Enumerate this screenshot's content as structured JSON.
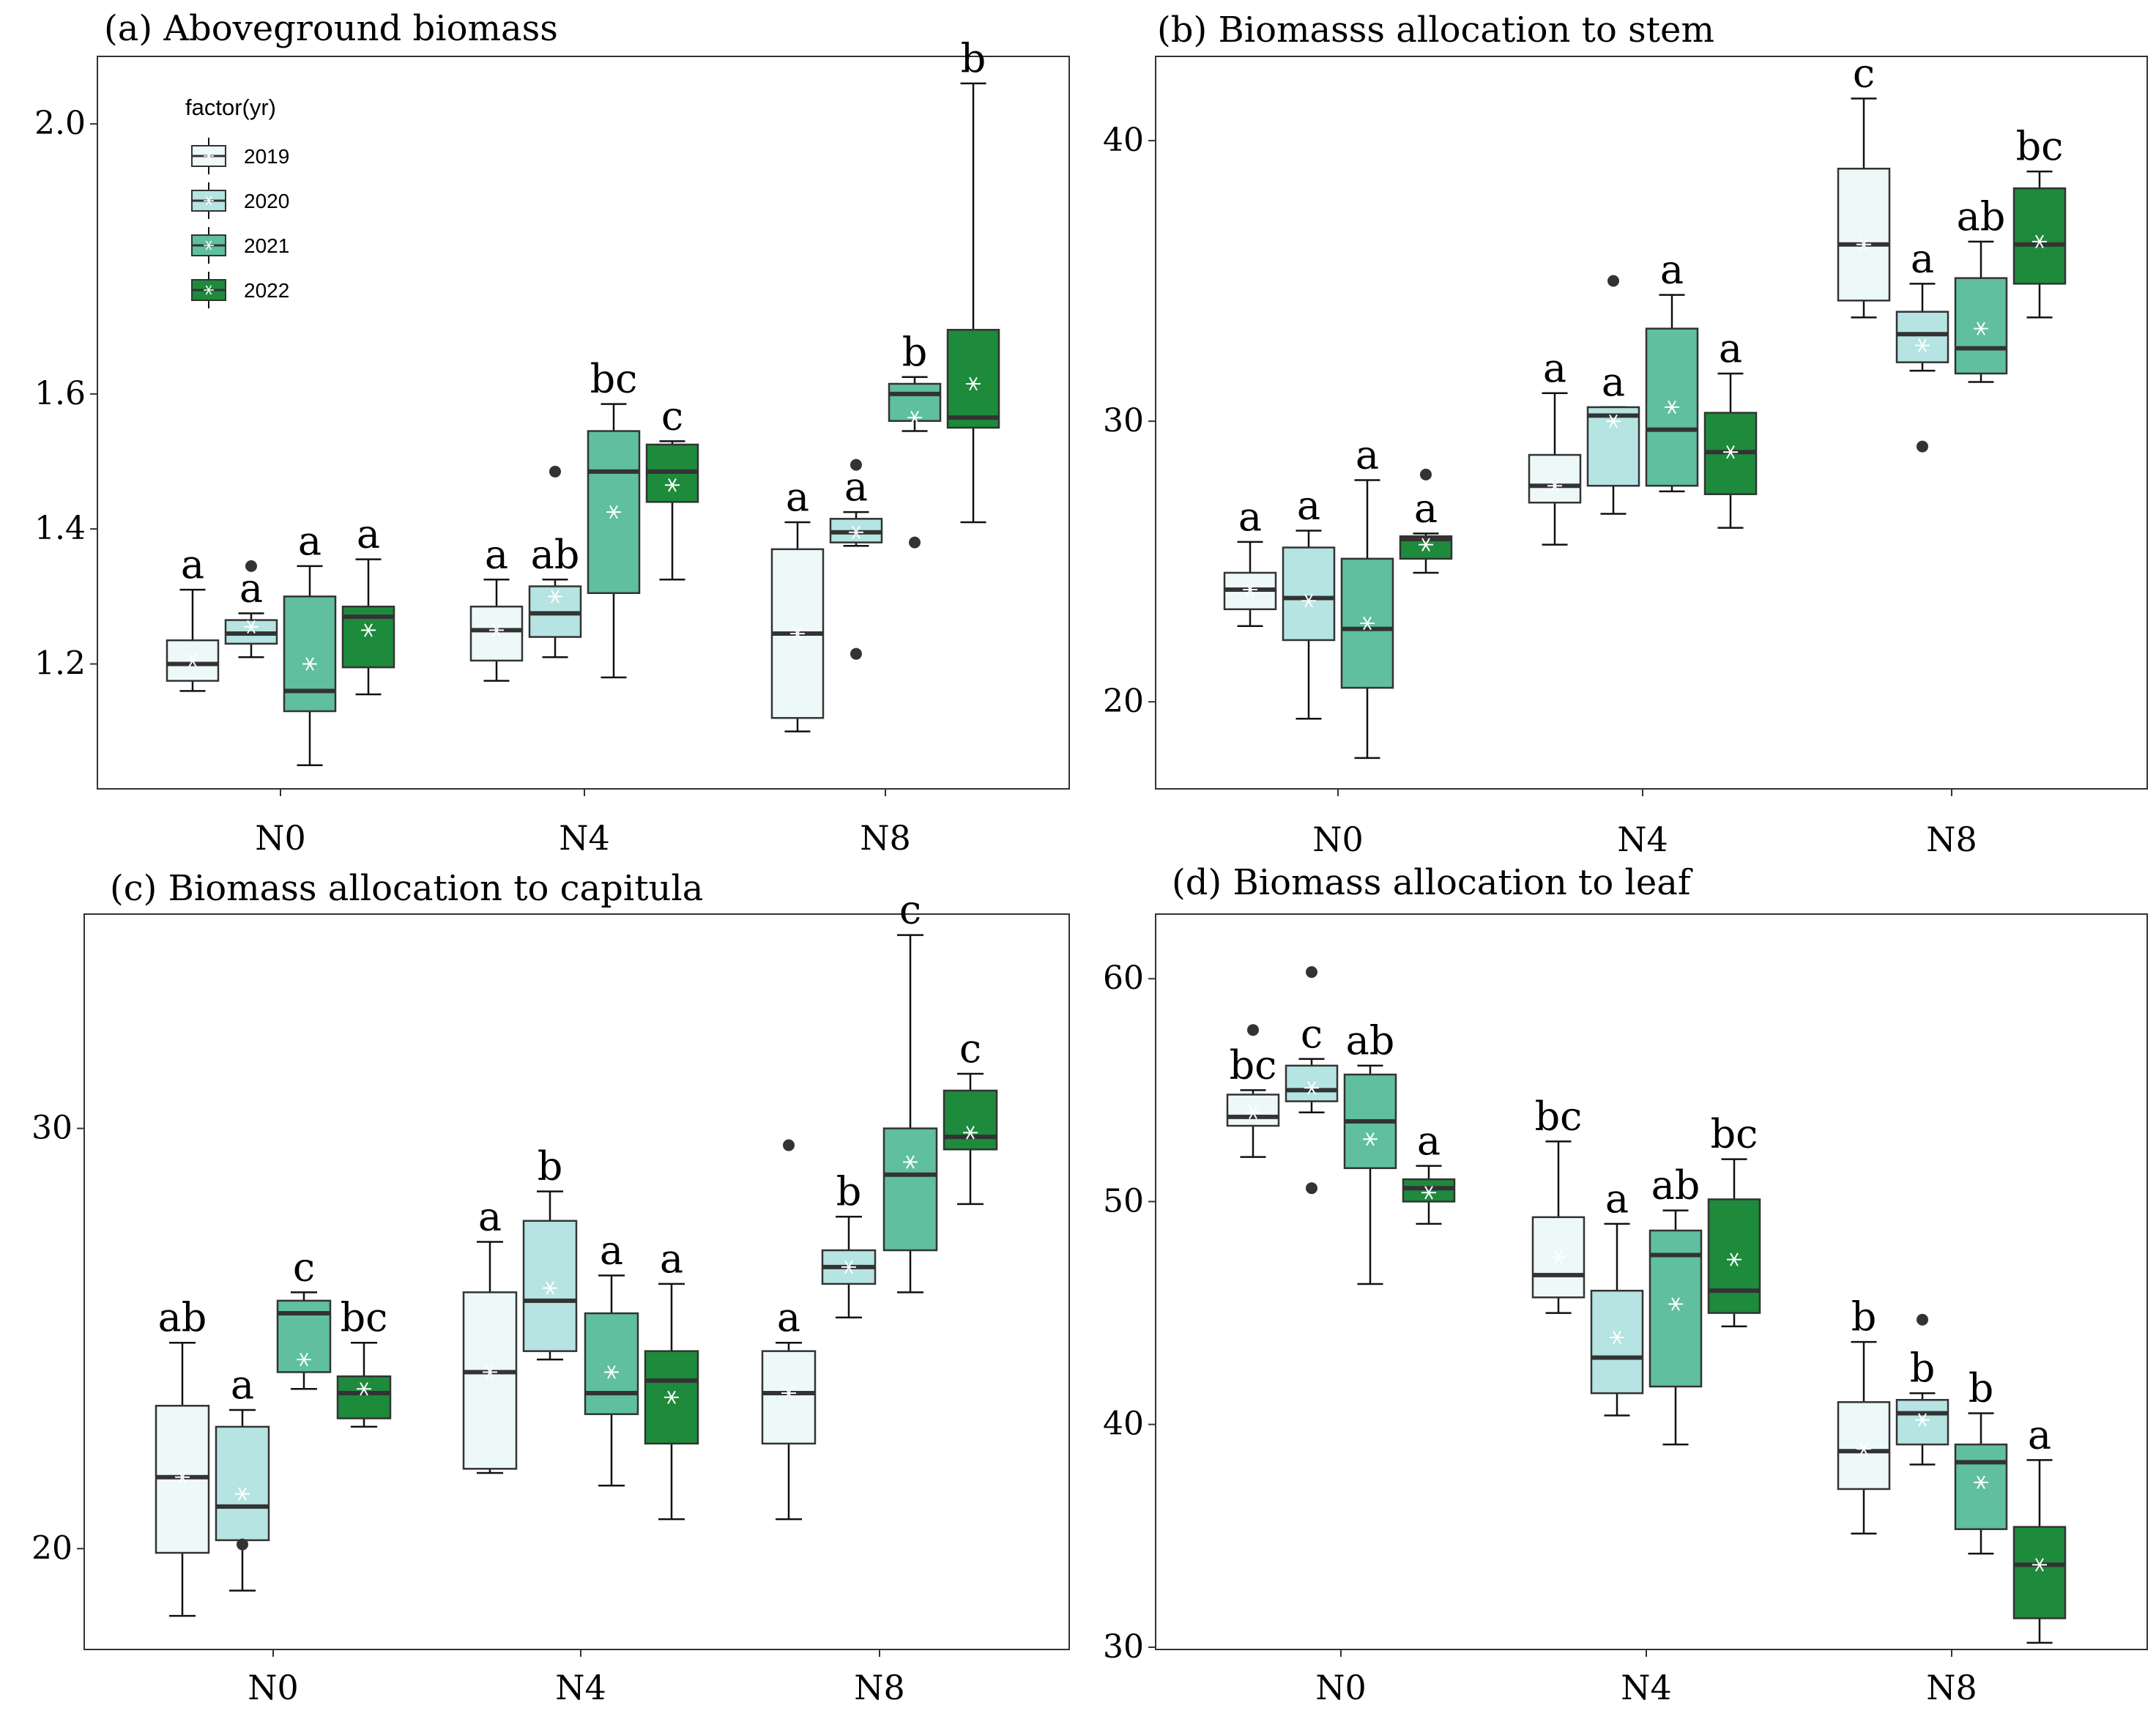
{
  "colors": {
    "2019": "#EDF8F8",
    "2020": "#B5E4E2",
    "2021": "#5FBF9F",
    "2022": "#1E8A3C"
  },
  "legend": {
    "title": "factor(yr)",
    "items": [
      "2019",
      "2020",
      "2021",
      "2022"
    ]
  },
  "chart_data": [
    {
      "type": "box",
      "title": "(a) Aboveground biomass",
      "categories": [
        "N0",
        "N4",
        "N8"
      ],
      "series_names": [
        "2019",
        "2020",
        "2021",
        "2022"
      ],
      "ylim": [
        1.015,
        2.1
      ],
      "yticks": [
        1.2,
        1.4,
        1.6,
        2.0
      ],
      "ytick_labels": [
        "1.2",
        "1.4",
        "1.6",
        "2.0"
      ],
      "boxes": [
        {
          "cat": "N0",
          "series": "2019",
          "whisker_low": 1.16,
          "q1": 1.175,
          "median": 1.2,
          "q3": 1.235,
          "whisker_high": 1.31,
          "mean": 1.205,
          "outliers": [],
          "label": "a"
        },
        {
          "cat": "N0",
          "series": "2020",
          "whisker_low": 1.21,
          "q1": 1.23,
          "median": 1.245,
          "q3": 1.265,
          "whisker_high": 1.275,
          "mean": 1.255,
          "outliers": [
            1.345
          ],
          "label": "a"
        },
        {
          "cat": "N0",
          "series": "2021",
          "whisker_low": 1.05,
          "q1": 1.13,
          "median": 1.16,
          "q3": 1.3,
          "whisker_high": 1.345,
          "mean": 1.2,
          "outliers": [],
          "label": "a"
        },
        {
          "cat": "N0",
          "series": "2022",
          "whisker_low": 1.155,
          "q1": 1.195,
          "median": 1.27,
          "q3": 1.285,
          "whisker_high": 1.355,
          "mean": 1.25,
          "outliers": [],
          "label": "a"
        },
        {
          "cat": "N4",
          "series": "2019",
          "whisker_low": 1.175,
          "q1": 1.205,
          "median": 1.25,
          "q3": 1.285,
          "whisker_high": 1.325,
          "mean": 1.25,
          "outliers": [],
          "label": "a"
        },
        {
          "cat": "N4",
          "series": "2020",
          "whisker_low": 1.21,
          "q1": 1.24,
          "median": 1.275,
          "q3": 1.315,
          "whisker_high": 1.325,
          "mean": 1.3,
          "outliers": [
            1.485
          ],
          "label": "ab"
        },
        {
          "cat": "N4",
          "series": "2021",
          "whisker_low": 1.18,
          "q1": 1.305,
          "median": 1.485,
          "q3": 1.545,
          "whisker_high": 1.585,
          "mean": 1.425,
          "outliers": [],
          "label": "bc"
        },
        {
          "cat": "N4",
          "series": "2022",
          "whisker_low": 1.325,
          "q1": 1.44,
          "median": 1.485,
          "q3": 1.525,
          "whisker_high": 1.53,
          "mean": 1.465,
          "outliers": [],
          "label": "c"
        },
        {
          "cat": "N8",
          "series": "2019",
          "whisker_low": 1.1,
          "q1": 1.12,
          "median": 1.245,
          "q3": 1.37,
          "whisker_high": 1.41,
          "mean": 1.245,
          "outliers": [],
          "label": "a"
        },
        {
          "cat": "N8",
          "series": "2020",
          "whisker_low": 1.375,
          "q1": 1.38,
          "median": 1.395,
          "q3": 1.415,
          "whisker_high": 1.425,
          "mean": 1.395,
          "outliers": [
            1.495,
            1.215
          ],
          "label": "a"
        },
        {
          "cat": "N8",
          "series": "2021",
          "whisker_low": 1.545,
          "q1": 1.56,
          "median": 1.6,
          "q3": 1.615,
          "whisker_high": 1.625,
          "mean": 1.565,
          "outliers": [
            1.38
          ],
          "label": "b"
        },
        {
          "cat": "N8",
          "series": "2022",
          "whisker_low": 1.41,
          "q1": 1.55,
          "median": 1.565,
          "q3": 1.695,
          "whisker_high": 2.06,
          "mean": 1.615,
          "outliers": [],
          "label": "b"
        }
      ]
    },
    {
      "type": "box",
      "title": "(b) Biomasss allocation to stem",
      "categories": [
        "N0",
        "N4",
        "N8"
      ],
      "series_names": [
        "2019",
        "2020",
        "2021",
        "2022"
      ],
      "ylim": [
        16.9,
        43
      ],
      "yticks": [
        20,
        30,
        40
      ],
      "ytick_labels": [
        "20",
        "30",
        "40"
      ],
      "boxes": [
        {
          "cat": "N0",
          "series": "2019",
          "whisker_low": 22.7,
          "q1": 23.3,
          "median": 24,
          "q3": 24.6,
          "whisker_high": 25.7,
          "mean": 24,
          "outliers": [],
          "label": "a"
        },
        {
          "cat": "N0",
          "series": "2020",
          "whisker_low": 19.4,
          "q1": 22.2,
          "median": 23.7,
          "q3": 25.5,
          "whisker_high": 26.1,
          "mean": 23.6,
          "outliers": [],
          "label": "a"
        },
        {
          "cat": "N0",
          "series": "2021",
          "whisker_low": 18,
          "q1": 20.5,
          "median": 22.6,
          "q3": 25.1,
          "whisker_high": 27.9,
          "mean": 22.8,
          "outliers": [],
          "label": "a"
        },
        {
          "cat": "N0",
          "series": "2022",
          "whisker_low": 24.6,
          "q1": 25.1,
          "median": 25.8,
          "q3": 25.9,
          "whisker_high": 26,
          "mean": 25.6,
          "outliers": [
            28.1
          ],
          "label": "a"
        },
        {
          "cat": "N4",
          "series": "2019",
          "whisker_low": 25.6,
          "q1": 27.1,
          "median": 27.7,
          "q3": 28.8,
          "whisker_high": 31,
          "mean": 27.7,
          "outliers": [],
          "label": "a"
        },
        {
          "cat": "N4",
          "series": "2020",
          "whisker_low": 26.7,
          "q1": 27.7,
          "median": 30.2,
          "q3": 30.5,
          "whisker_high": 30.5,
          "mean": 30,
          "outliers": [
            35
          ],
          "label": "a"
        },
        {
          "cat": "N4",
          "series": "2021",
          "whisker_low": 27.5,
          "q1": 27.7,
          "median": 29.7,
          "q3": 33.3,
          "whisker_high": 34.5,
          "mean": 30.5,
          "outliers": [],
          "label": "a"
        },
        {
          "cat": "N4",
          "series": "2022",
          "whisker_low": 26.2,
          "q1": 27.4,
          "median": 28.9,
          "q3": 30.3,
          "whisker_high": 31.7,
          "mean": 28.9,
          "outliers": [],
          "label": "a"
        },
        {
          "cat": "N8",
          "series": "2019",
          "whisker_low": 33.7,
          "q1": 34.3,
          "median": 36.3,
          "q3": 39,
          "whisker_high": 41.5,
          "mean": 36.3,
          "outliers": [],
          "label": "c"
        },
        {
          "cat": "N8",
          "series": "2020",
          "whisker_low": 31.8,
          "q1": 32.1,
          "median": 33.1,
          "q3": 33.9,
          "whisker_high": 34.9,
          "mean": 32.7,
          "outliers": [
            29.1
          ],
          "label": "a"
        },
        {
          "cat": "N8",
          "series": "2021",
          "whisker_low": 31.4,
          "q1": 31.7,
          "median": 32.6,
          "q3": 35.1,
          "whisker_high": 36.4,
          "mean": 33.3,
          "outliers": [],
          "label": "ab"
        },
        {
          "cat": "N8",
          "series": "2022",
          "whisker_low": 33.7,
          "q1": 34.9,
          "median": 36.3,
          "q3": 38.3,
          "whisker_high": 38.9,
          "mean": 36.4,
          "outliers": [],
          "label": "bc"
        }
      ]
    },
    {
      "type": "box",
      "title": "(c) Biomass allocation to capitula",
      "categories": [
        "N0",
        "N4",
        "N8"
      ],
      "series_names": [
        "2019",
        "2020",
        "2021",
        "2022"
      ],
      "ylim": [
        17.6,
        35.1
      ],
      "yticks": [
        20,
        30
      ],
      "ytick_labels": [
        "20",
        "30"
      ],
      "boxes": [
        {
          "cat": "N0",
          "series": "2019",
          "whisker_low": 18.4,
          "q1": 19.9,
          "median": 21.7,
          "q3": 23.4,
          "whisker_high": 24.9,
          "mean": 21.7,
          "outliers": [],
          "label": "ab"
        },
        {
          "cat": "N0",
          "series": "2020",
          "whisker_low": 19,
          "q1": 20.2,
          "median": 21,
          "q3": 22.9,
          "whisker_high": 23.3,
          "mean": 21.3,
          "outliers": [
            20.1
          ],
          "label": "a"
        },
        {
          "cat": "N0",
          "series": "2021",
          "whisker_low": 23.8,
          "q1": 24.2,
          "median": 25.6,
          "q3": 25.9,
          "whisker_high": 26.1,
          "mean": 24.5,
          "outliers": [],
          "label": "c"
        },
        {
          "cat": "N0",
          "series": "2022",
          "whisker_low": 22.9,
          "q1": 23.1,
          "median": 23.7,
          "q3": 24.1,
          "whisker_high": 24.9,
          "mean": 23.8,
          "outliers": [],
          "label": "bc"
        },
        {
          "cat": "N4",
          "series": "2019",
          "whisker_low": 21.8,
          "q1": 21.9,
          "median": 24.2,
          "q3": 26.1,
          "whisker_high": 27.3,
          "mean": 24.2,
          "outliers": [],
          "label": "a"
        },
        {
          "cat": "N4",
          "series": "2020",
          "whisker_low": 24.5,
          "q1": 24.7,
          "median": 25.9,
          "q3": 27.8,
          "whisker_high": 28.5,
          "mean": 26.2,
          "outliers": [],
          "label": "b"
        },
        {
          "cat": "N4",
          "series": "2021",
          "whisker_low": 21.5,
          "q1": 23.2,
          "median": 23.7,
          "q3": 25.6,
          "whisker_high": 26.5,
          "mean": 24.2,
          "outliers": [],
          "label": "a"
        },
        {
          "cat": "N4",
          "series": "2022",
          "whisker_low": 20.7,
          "q1": 22.5,
          "median": 24,
          "q3": 24.7,
          "whisker_high": 26.3,
          "mean": 23.6,
          "outliers": [],
          "label": "a"
        },
        {
          "cat": "N8",
          "series": "2019",
          "whisker_low": 20.7,
          "q1": 22.5,
          "median": 23.7,
          "q3": 24.7,
          "whisker_high": 24.9,
          "mean": 23.7,
          "outliers": [
            29.6
          ],
          "label": "a"
        },
        {
          "cat": "N8",
          "series": "2020",
          "whisker_low": 25.5,
          "q1": 26.3,
          "median": 26.7,
          "q3": 27.1,
          "whisker_high": 27.9,
          "mean": 26.7,
          "outliers": [],
          "label": "b"
        },
        {
          "cat": "N8",
          "series": "2021",
          "whisker_low": 26.1,
          "q1": 27.1,
          "median": 28.9,
          "q3": 30,
          "whisker_high": 34.6,
          "mean": 29.2,
          "outliers": [],
          "label": "c"
        },
        {
          "cat": "N8",
          "series": "2022",
          "whisker_low": 28.2,
          "q1": 29.5,
          "median": 29.8,
          "q3": 30.9,
          "whisker_high": 31.3,
          "mean": 29.9,
          "outliers": [],
          "label": "c"
        }
      ]
    },
    {
      "type": "box",
      "title": "(d) Biomass allocation to leaf",
      "categories": [
        "N0",
        "N4",
        "N8"
      ],
      "series_names": [
        "2019",
        "2020",
        "2021",
        "2022"
      ],
      "ylim": [
        29.9,
        62.9
      ],
      "yticks": [
        30,
        40,
        50,
        60
      ],
      "ytick_labels": [
        "30",
        "40",
        "50",
        "60"
      ],
      "boxes": [
        {
          "cat": "N0",
          "series": "2019",
          "whisker_low": 52,
          "q1": 53.4,
          "median": 53.8,
          "q3": 54.8,
          "whisker_high": 55,
          "mean": 54,
          "outliers": [
            57.7
          ],
          "label": "bc"
        },
        {
          "cat": "N0",
          "series": "2020",
          "whisker_low": 54,
          "q1": 54.5,
          "median": 55,
          "q3": 56.1,
          "whisker_high": 56.4,
          "mean": 55.1,
          "outliers": [
            60.3,
            50.6
          ],
          "label": "c"
        },
        {
          "cat": "N0",
          "series": "2021",
          "whisker_low": 46.3,
          "q1": 51.5,
          "median": 53.6,
          "q3": 55.7,
          "whisker_high": 56.1,
          "mean": 52.8,
          "outliers": [],
          "label": "ab"
        },
        {
          "cat": "N0",
          "series": "2022",
          "whisker_low": 49,
          "q1": 50,
          "median": 50.6,
          "q3": 51,
          "whisker_high": 51.6,
          "mean": 50.4,
          "outliers": [],
          "label": "a"
        },
        {
          "cat": "N4",
          "series": "2019",
          "whisker_low": 45,
          "q1": 45.7,
          "median": 46.7,
          "q3": 49.3,
          "whisker_high": 52.7,
          "mean": 47.5,
          "outliers": [],
          "label": "bc"
        },
        {
          "cat": "N4",
          "series": "2020",
          "whisker_low": 40.4,
          "q1": 41.4,
          "median": 43,
          "q3": 46,
          "whisker_high": 49,
          "mean": 43.9,
          "outliers": [],
          "label": "a"
        },
        {
          "cat": "N4",
          "series": "2021",
          "whisker_low": 39.1,
          "q1": 41.7,
          "median": 47.6,
          "q3": 48.7,
          "whisker_high": 49.6,
          "mean": 45.4,
          "outliers": [],
          "label": "ab"
        },
        {
          "cat": "N4",
          "series": "2022",
          "whisker_low": 44.4,
          "q1": 45,
          "median": 46,
          "q3": 50.1,
          "whisker_high": 51.9,
          "mean": 47.4,
          "outliers": [],
          "label": "bc"
        },
        {
          "cat": "N8",
          "series": "2019",
          "whisker_low": 35.1,
          "q1": 37.1,
          "median": 38.8,
          "q3": 41,
          "whisker_high": 43.7,
          "mean": 38.9,
          "outliers": [],
          "label": "b"
        },
        {
          "cat": "N8",
          "series": "2020",
          "whisker_low": 38.2,
          "q1": 39.1,
          "median": 40.5,
          "q3": 41.1,
          "whisker_high": 41.4,
          "mean": 40.2,
          "outliers": [
            44.7
          ],
          "label": "b"
        },
        {
          "cat": "N8",
          "series": "2021",
          "whisker_low": 34.2,
          "q1": 35.3,
          "median": 38.3,
          "q3": 39.1,
          "whisker_high": 40.5,
          "mean": 37.4,
          "outliers": [],
          "label": "b"
        },
        {
          "cat": "N8",
          "series": "2022",
          "whisker_low": 30.2,
          "q1": 31.3,
          "median": 33.7,
          "q3": 35.4,
          "whisker_high": 38.4,
          "mean": 33.7,
          "outliers": [],
          "label": "a"
        }
      ]
    }
  ]
}
